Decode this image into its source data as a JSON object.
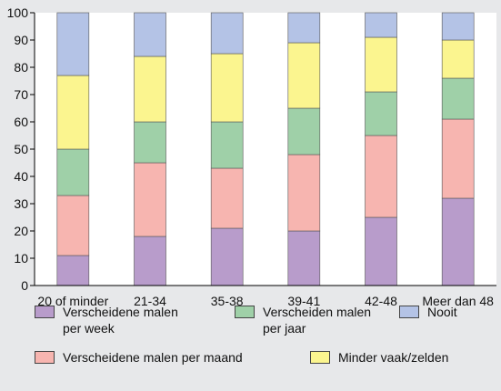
{
  "chart_data": {
    "type": "bar",
    "stacked": true,
    "categories": [
      "20 of minder",
      "21-34",
      "35-38",
      "39-41",
      "42-48",
      "Meer dan 48"
    ],
    "ylim": [
      0,
      100
    ],
    "yticks": [
      0,
      10,
      20,
      30,
      40,
      50,
      60,
      70,
      80,
      90,
      100
    ],
    "grid": false,
    "legend_position": "bottom",
    "series": [
      {
        "name": "Verscheidene malen\nper week",
        "color": "#b89ccb",
        "values": [
          11,
          18,
          21,
          20,
          25,
          32
        ]
      },
      {
        "name": "Verscheidene malen per maand",
        "color": "#f7b5b0",
        "values": [
          22,
          27,
          22,
          28,
          30,
          29
        ]
      },
      {
        "name": "Verscheiden malen\nper jaar",
        "color": "#9fd0a8",
        "values": [
          17,
          15,
          17,
          17,
          16,
          15
        ]
      },
      {
        "name": "Minder vaak/zelden",
        "color": "#fbf58f",
        "values": [
          27,
          24,
          25,
          24,
          20,
          14
        ]
      },
      {
        "name": "Nooit",
        "color": "#b4c3e6",
        "values": [
          23,
          16,
          15,
          11,
          9,
          10
        ]
      }
    ]
  }
}
